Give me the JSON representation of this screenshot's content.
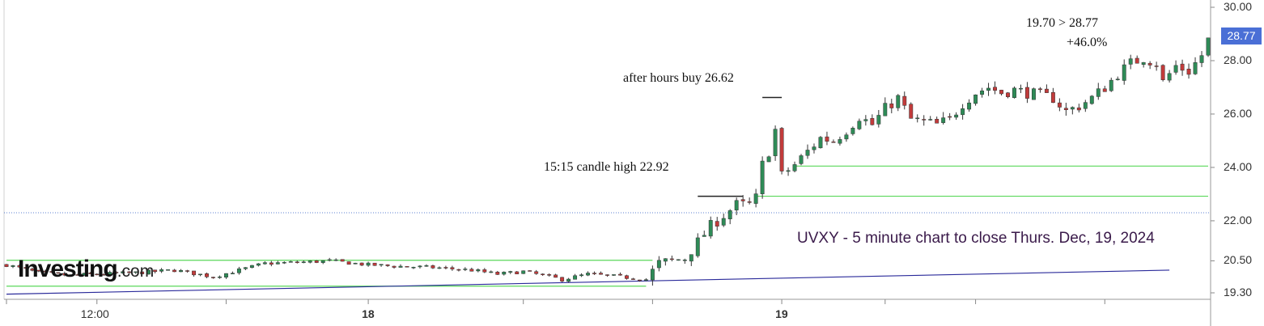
{
  "chart_data": {
    "type": "candlestick",
    "title": "UVXY - 5 minute chart to close Thurs. Dec, 19, 2024",
    "ylim": [
      19.1,
      30.2
    ],
    "y_ticks": [
      {
        "value": 30.0,
        "label": "30.00"
      },
      {
        "value": 28.0,
        "label": "28.00"
      },
      {
        "value": 26.0,
        "label": "26.00"
      },
      {
        "value": 24.0,
        "label": "24.00"
      },
      {
        "value": 22.0,
        "label": "22.00"
      },
      {
        "value": 20.5,
        "label": "20.50"
      },
      {
        "value": 19.3,
        "label": "19.30"
      }
    ],
    "x_ticks": [
      {
        "label": "12:00",
        "bar": 14,
        "bold": false
      },
      {
        "label": "18",
        "bar": 56,
        "bold": true
      },
      {
        "label": "19",
        "bar": 120,
        "bold": true
      }
    ],
    "separators": [
      0,
      34,
      80,
      100,
      136,
      150,
      170
    ],
    "last_price": "28.77",
    "last_price_value": 28.77,
    "prev_close_line": 22.3,
    "horizontal_levels": [
      {
        "value": 20.52,
        "from_bar": 0,
        "to_bar": 100,
        "color": "#5ad85a"
      },
      {
        "value": 19.55,
        "from_bar": 0,
        "to_bar": 99,
        "color": "#5ad85a"
      },
      {
        "value": 22.92,
        "from_bar": 116,
        "to_bar": 186,
        "color": "#5ad85a"
      },
      {
        "value": 24.05,
        "from_bar": 122,
        "to_bar": 186,
        "color": "#5ad85a"
      },
      {
        "value": 22.92,
        "from_bar": 107,
        "to_bar": 114,
        "color": "#222222"
      },
      {
        "value": 26.62,
        "from_bar": 117,
        "to_bar": 120,
        "color": "#222222"
      }
    ],
    "trendline": {
      "from_bar": 0,
      "from_value": 19.25,
      "to_bar": 180,
      "to_value": 20.15,
      "color": "#2a2a9a"
    },
    "ohlc_anchors": [
      [
        0,
        20.35
      ],
      [
        5,
        20.05
      ],
      [
        10,
        19.95
      ],
      [
        14,
        20.0
      ],
      [
        20,
        20.05
      ],
      [
        26,
        20.15
      ],
      [
        32,
        19.9
      ],
      [
        36,
        20.15
      ],
      [
        40,
        20.4
      ],
      [
        46,
        20.45
      ],
      [
        50,
        20.5
      ],
      [
        56,
        20.35
      ],
      [
        60,
        20.3
      ],
      [
        66,
        20.25
      ],
      [
        72,
        20.15
      ],
      [
        76,
        20.0
      ],
      [
        80,
        20.1
      ],
      [
        86,
        19.8
      ],
      [
        90,
        20.0
      ],
      [
        95,
        19.9
      ],
      [
        99,
        19.8
      ],
      [
        101,
        20.4
      ],
      [
        105,
        20.6
      ],
      [
        107,
        21.2
      ],
      [
        109,
        21.8
      ],
      [
        111,
        22.2
      ],
      [
        113,
        22.6
      ],
      [
        115,
        22.6
      ],
      [
        116,
        22.85
      ],
      [
        117,
        24.1
      ],
      [
        118,
        24.6
      ],
      [
        119,
        25.4
      ],
      [
        120,
        23.7
      ],
      [
        122,
        24.1
      ],
      [
        124,
        24.6
      ],
      [
        126,
        25.1
      ],
      [
        128,
        25.0
      ],
      [
        130,
        25.4
      ],
      [
        132,
        25.9
      ],
      [
        134,
        25.6
      ],
      [
        136,
        26.2
      ],
      [
        138,
        26.6
      ],
      [
        140,
        25.8
      ],
      [
        142,
        25.7
      ],
      [
        144,
        25.6
      ],
      [
        146,
        25.8
      ],
      [
        148,
        26.4
      ],
      [
        150,
        26.8
      ],
      [
        152,
        27.0
      ],
      [
        154,
        26.8
      ],
      [
        156,
        26.9
      ],
      [
        158,
        26.8
      ],
      [
        160,
        26.7
      ],
      [
        162,
        26.6
      ],
      [
        164,
        26.1
      ],
      [
        166,
        26.3
      ],
      [
        168,
        26.6
      ],
      [
        170,
        27.0
      ],
      [
        172,
        27.5
      ],
      [
        174,
        27.9
      ],
      [
        176,
        28.1
      ],
      [
        178,
        27.9
      ],
      [
        179,
        27.2
      ],
      [
        181,
        27.8
      ],
      [
        183,
        27.6
      ],
      [
        185,
        28.2
      ],
      [
        186,
        28.77
      ]
    ],
    "n_bars": 187
  },
  "annotations": {
    "after_hours": "after hours buy 26.62",
    "candle_high": "15:15 candle high 22.92",
    "change_line1": "19.70 > 28.77",
    "change_line2": "+46.0%"
  },
  "logo": {
    "name": "Investing",
    "suffix": ".com"
  },
  "colors": {
    "up": "#2e8b57",
    "down": "#c23b3b",
    "level": "#5ad85a",
    "trend": "#2a2a9a",
    "price_tag": "#4a6fd6"
  }
}
